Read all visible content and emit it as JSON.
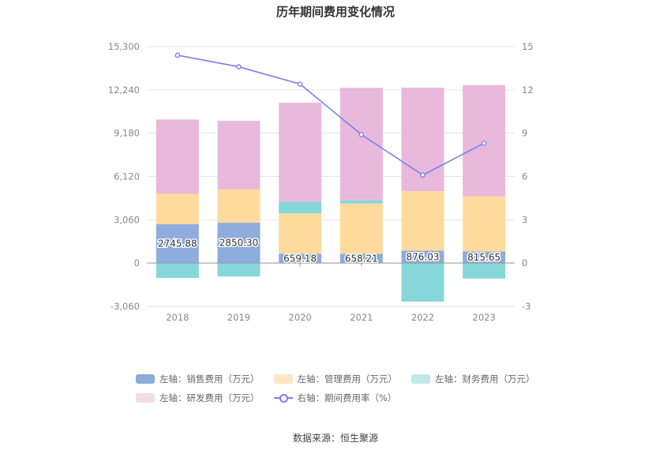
{
  "chart_data": {
    "type": "bar",
    "title": "历年期间费用变化情况",
    "categories": [
      "2018",
      "2019",
      "2020",
      "2021",
      "2022",
      "2023"
    ],
    "left_axis": {
      "ticks": [
        "15,300",
        "12,240",
        "9,180",
        "6,120",
        "3,060",
        "0",
        "-3,060"
      ],
      "ylim": [
        -3060,
        15300
      ]
    },
    "right_axis": {
      "ticks": [
        "15",
        "12",
        "9",
        "6",
        "3",
        "0",
        "-3"
      ],
      "ylim": [
        -3,
        15
      ]
    },
    "series": [
      {
        "name": "左轴：销售费用（万元）",
        "color": "#8eacdc",
        "values": [
          2745.88,
          2850.3,
          659.18,
          658.21,
          876.03,
          815.65
        ],
        "labels": [
          "2745.88",
          "2850.30",
          "659.18",
          "658.21",
          "876.03",
          "815.65"
        ]
      },
      {
        "name": "左轴：管理费用（万元）",
        "color": "#fedb9c",
        "values": [
          2150,
          2350,
          2850,
          3550,
          4200,
          3900
        ]
      },
      {
        "name": "左轴：财务费用（万元）",
        "color": "#86d6da",
        "values": [
          -1050,
          -950,
          820,
          230,
          -2720,
          -1100
        ]
      },
      {
        "name": "左轴：研发费用（万元）",
        "color": "#e8b9db",
        "values": [
          5250,
          4850,
          7000,
          7950,
          7320,
          7860
        ]
      }
    ],
    "line_series": {
      "name": "右轴：期间费用率（%）",
      "color": "#7b7ff0",
      "values": [
        14.4,
        13.6,
        12.4,
        8.9,
        6.1,
        8.3
      ]
    }
  },
  "legend": {
    "items": [
      {
        "label": "左轴：销售费用（万元）",
        "color": "#8eacdc"
      },
      {
        "label": "左轴：管理费用（万元）",
        "color": "#fedb9c"
      },
      {
        "label": "左轴：财务费用（万元）",
        "color": "#c0e9ec"
      },
      {
        "label": "左轴：研发费用（万元）",
        "color": "#f3ddec"
      },
      {
        "label": "右轴：期间费用率（%）",
        "color": "#7b7ff0"
      }
    ]
  },
  "source": "数据来源：恒生聚源"
}
